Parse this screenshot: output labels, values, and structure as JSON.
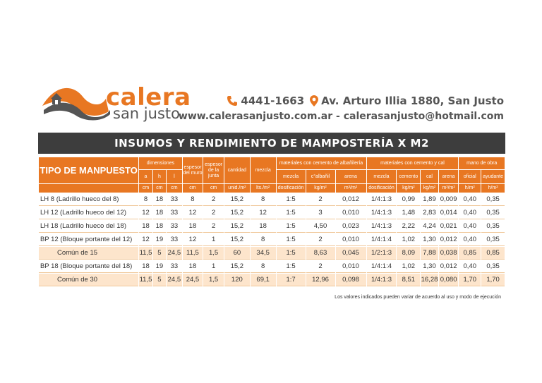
{
  "brand": {
    "word1": "calera",
    "word2": "san justo",
    "orange": "#e87722",
    "gray": "#555555"
  },
  "contact": {
    "phone_icon": "phone-icon",
    "phone": "4441-1663",
    "pin_icon": "map-pin-icon",
    "address": "Av. Arturo Illia 1880, San Justo",
    "web_email": "www.calerasanjusto.com.ar - calerasanjusto@hotmail.com"
  },
  "title": "INSUMOS Y RENDIMIENTO DE MAMPOSTERÍA X M2",
  "header": {
    "tipo": "TIPO DE MANPUESTO",
    "dimensiones": "dimensiones",
    "a": "a",
    "h": "h",
    "l": "l",
    "espesor_muro": "espesor del muro",
    "espesor_junta": "espesor de la junta",
    "cantidad": "cantidad",
    "mezcla": "mezcla",
    "grupo_albanileria": "materiales con cemento de albañilería",
    "mezcla_sub": "mezcla",
    "calbanil": "c°albañil",
    "arena": "arena",
    "grupo_cal": "materiales con cemento y cal",
    "mezcla_cal": "mezcla",
    "cemento": "cemento",
    "cal": "cal",
    "arena_cal": "arena",
    "grupo_mano": "mano de obra",
    "oficial": "oficial",
    "ayudante": "ayudante",
    "units": {
      "cm_a": "cm",
      "cm_h": "cm",
      "cm_l": "cm",
      "cm_muro": "cm",
      "cm_junta": "cm",
      "cantidad": "unid./m²",
      "mezcla": "lts./m²",
      "dos1": "dosificación",
      "kg1": "kg/m²",
      "m3a": "m³/m²",
      "dos2": "dosificación",
      "kg2": "kg/m²",
      "kg3": "kg/m²",
      "m3b": "m³/m²",
      "hm1": "h/m²",
      "hm2": "h/m²"
    }
  },
  "rows": [
    {
      "name": "LH 8  (Ladrillo hueco del 8)",
      "a": "8",
      "h": "18",
      "l": "33",
      "muro": "8",
      "junta": "2",
      "cant": "15,2",
      "mezcla": "8",
      "d1": "1:5",
      "c1": "2",
      "ar1": "0,012",
      "d2": "1/4:1:3",
      "cem": "0,99",
      "cal": "1,89",
      "ar2": "0,009",
      "of": "0,40",
      "ay": "0,35",
      "shaded": false,
      "indent": false
    },
    {
      "name": "LH 12  (Ladrillo hueco del 12)",
      "a": "12",
      "h": "18",
      "l": "33",
      "muro": "12",
      "junta": "2",
      "cant": "15,2",
      "mezcla": "12",
      "d1": "1:5",
      "c1": "3",
      "ar1": "0,010",
      "d2": "1/4:1:3",
      "cem": "1,48",
      "cal": "2,83",
      "ar2": "0,014",
      "of": "0,40",
      "ay": "0,35",
      "shaded": false,
      "indent": false
    },
    {
      "name": "LH 18  (Ladrillo hueco del 18)",
      "a": "18",
      "h": "18",
      "l": "33",
      "muro": "18",
      "junta": "2",
      "cant": "15,2",
      "mezcla": "18",
      "d1": "1:5",
      "c1": "4,50",
      "ar1": "0,023",
      "d2": "1/4:1:3",
      "cem": "2,22",
      "cal": "4,24",
      "ar2": "0,021",
      "of": "0,40",
      "ay": "0,35",
      "shaded": false,
      "indent": false
    },
    {
      "name": "BP  12 (Bloque portante del 12)",
      "a": "12",
      "h": "19",
      "l": "33",
      "muro": "12",
      "junta": "1",
      "cant": "15,2",
      "mezcla": "8",
      "d1": "1:5",
      "c1": "2",
      "ar1": "0,010",
      "d2": "1/4:1:4",
      "cem": "1,02",
      "cal": "1,30",
      "ar2": "0,012",
      "of": "0,40",
      "ay": "0,35",
      "shaded": false,
      "indent": false
    },
    {
      "name": "Común de 15",
      "a": "11,5",
      "h": "5",
      "l": "24,5",
      "muro": "11,5",
      "junta": "1,5",
      "cant": "60",
      "mezcla": "34,5",
      "d1": "1:5",
      "c1": "8,63",
      "ar1": "0,045",
      "d2": "1/2:1:3",
      "cem": "8,09",
      "cal": "7,88",
      "ar2": "0,038",
      "of": "0,85",
      "ay": "0,85",
      "shaded": true,
      "indent": true
    },
    {
      "name": "BP  18 (Bloque portante del 18)",
      "a": "18",
      "h": "19",
      "l": "33",
      "muro": "18",
      "junta": "1",
      "cant": "15,2",
      "mezcla": "8",
      "d1": "1:5",
      "c1": "2",
      "ar1": "0,010",
      "d2": "1/4:1:4",
      "cem": "1,02",
      "cal": "1,30",
      "ar2": "0,012",
      "of": "0,40",
      "ay": "0,35",
      "shaded": false,
      "indent": false
    },
    {
      "name": "Común de 30",
      "a": "11,5",
      "h": "5",
      "l": "24,5",
      "muro": "24,5",
      "junta": "1,5",
      "cant": "120",
      "mezcla": "69,1",
      "d1": "1:7",
      "c1": "12,96",
      "ar1": "0,098",
      "d2": "1/4:1:3",
      "cem": "8,51",
      "cal": "16,28",
      "ar2": "0,080",
      "of": "1,70",
      "ay": "1,70",
      "shaded": true,
      "indent": true
    }
  ],
  "note": "Los valores indicados pueden variar de acuerdo al uso y modo de ejecución"
}
